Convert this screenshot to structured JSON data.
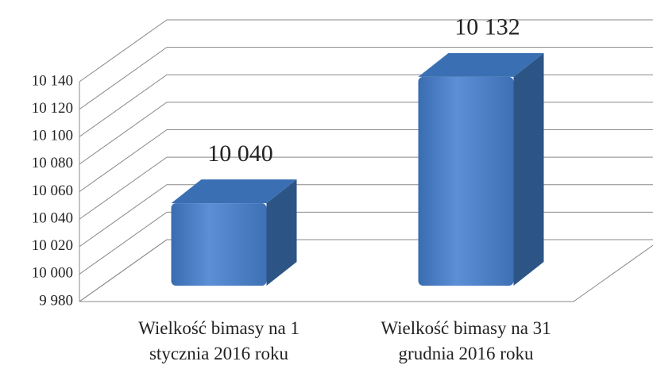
{
  "chart_data": {
    "type": "bar3d",
    "categories": [
      "Wielkość bimasy na 1 stycznia 2016 roku",
      "Wielkość bimasy na 31 grudnia 2016 roku"
    ],
    "values": [
      10040,
      10132
    ],
    "value_labels": [
      "10 040",
      "10 132"
    ],
    "color": "#4f81bd",
    "ylim": [
      9980,
      10140
    ],
    "yticks": [
      {
        "value": 9980,
        "label": "9 980"
      },
      {
        "value": 10000,
        "label": "10 000"
      },
      {
        "value": 10020,
        "label": "10 020"
      },
      {
        "value": 10040,
        "label": "10 040"
      },
      {
        "value": 10060,
        "label": "10 060"
      },
      {
        "value": 10080,
        "label": "10 080"
      },
      {
        "value": 10100,
        "label": "10 100"
      },
      {
        "value": 10120,
        "label": "10 120"
      },
      {
        "value": 10140,
        "label": "10 140"
      }
    ],
    "grid": true
  }
}
